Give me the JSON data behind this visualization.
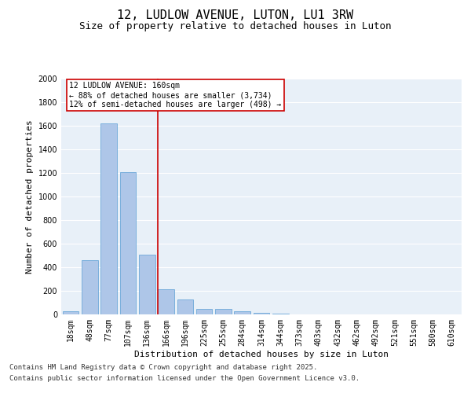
{
  "title": "12, LUDLOW AVENUE, LUTON, LU1 3RW",
  "subtitle": "Size of property relative to detached houses in Luton",
  "xlabel": "Distribution of detached houses by size in Luton",
  "ylabel": "Number of detached properties",
  "categories": [
    "18sqm",
    "48sqm",
    "77sqm",
    "107sqm",
    "136sqm",
    "166sqm",
    "196sqm",
    "225sqm",
    "255sqm",
    "284sqm",
    "314sqm",
    "344sqm",
    "373sqm",
    "403sqm",
    "432sqm",
    "462sqm",
    "492sqm",
    "521sqm",
    "551sqm",
    "580sqm",
    "610sqm"
  ],
  "values": [
    30,
    460,
    1620,
    1210,
    510,
    215,
    125,
    50,
    45,
    30,
    15,
    5,
    2,
    1,
    0,
    0,
    0,
    0,
    0,
    0,
    0
  ],
  "bar_color": "#aec6e8",
  "bar_edge_color": "#5a9fd4",
  "vline_color": "#cc0000",
  "annotation_box_text": "12 LUDLOW AVENUE: 160sqm\n← 88% of detached houses are smaller (3,734)\n12% of semi-detached houses are larger (498) →",
  "annotation_box_color": "#cc0000",
  "annotation_box_facecolor": "white",
  "ylim": [
    0,
    2000
  ],
  "yticks": [
    0,
    200,
    400,
    600,
    800,
    1000,
    1200,
    1400,
    1600,
    1800,
    2000
  ],
  "background_color": "#e8f0f8",
  "footer_line1": "Contains HM Land Registry data © Crown copyright and database right 2025.",
  "footer_line2": "Contains public sector information licensed under the Open Government Licence v3.0.",
  "title_fontsize": 11,
  "subtitle_fontsize": 9,
  "label_fontsize": 8,
  "tick_fontsize": 7,
  "footer_fontsize": 6.5,
  "ann_fontsize": 7
}
